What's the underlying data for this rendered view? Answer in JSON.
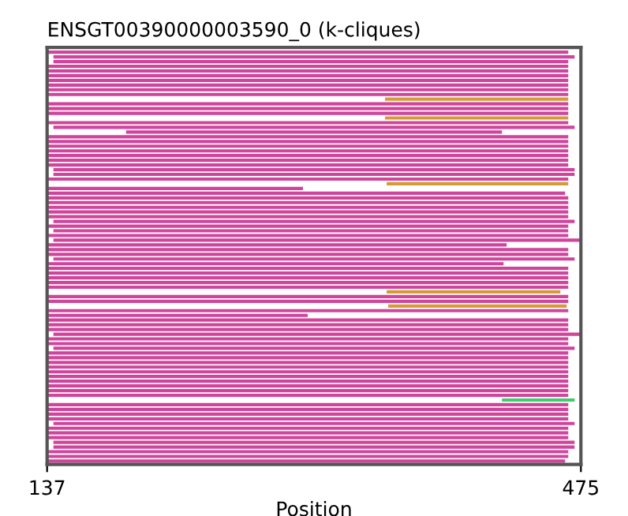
{
  "chart_data": {
    "type": "bar",
    "orientation": "horizontal",
    "title": "ENSGT00390000003590_0 (k-cliques)",
    "xlabel": "Position",
    "categories": [
      null,
      null,
      null,
      null,
      null,
      null,
      null,
      null,
      null,
      null,
      null,
      null,
      null,
      null,
      null,
      null,
      null,
      null,
      null,
      null,
      null,
      null,
      null,
      null,
      null,
      null,
      null,
      null,
      null,
      null,
      null,
      null,
      null,
      null,
      null,
      null,
      null,
      null,
      null,
      null,
      null,
      null,
      null,
      null,
      null,
      null,
      null,
      null,
      null,
      null,
      null,
      null,
      null,
      null,
      null,
      null,
      null,
      null,
      null,
      null,
      null,
      null,
      null,
      null,
      null,
      null,
      null,
      null,
      null,
      null,
      null,
      null,
      null,
      null,
      null,
      null,
      null,
      null,
      null,
      null,
      null,
      null,
      null,
      null,
      null,
      null,
      null,
      null
    ],
    "base": [
      137,
      141,
      141,
      137,
      137,
      137,
      137,
      137,
      137,
      137,
      351,
      137,
      137,
      137,
      351,
      137,
      141,
      187,
      137,
      137,
      137,
      137,
      137,
      137,
      137,
      141,
      141,
      137,
      352,
      137,
      137,
      137,
      137,
      137,
      137,
      137,
      141,
      137,
      141,
      137,
      141,
      137,
      137,
      137,
      141,
      137,
      137,
      137,
      137,
      137,
      137,
      352,
      137,
      137,
      353,
      137,
      137,
      137,
      137,
      137,
      141,
      137,
      137,
      141,
      137,
      137,
      137,
      137,
      137,
      137,
      137,
      137,
      137,
      137,
      425,
      137,
      137,
      137,
      137,
      141,
      137,
      137,
      137,
      141,
      141,
      137,
      137,
      137
    ],
    "values": [
      330,
      330,
      326,
      330,
      330,
      330,
      330,
      330,
      330,
      330,
      116,
      330,
      330,
      330,
      116,
      330,
      330,
      238,
      330,
      330,
      330,
      330,
      330,
      330,
      330,
      330,
      330,
      330,
      115,
      162,
      328,
      330,
      330,
      330,
      330,
      330,
      330,
      330,
      326,
      330,
      334,
      291,
      330,
      330,
      330,
      289,
      330,
      330,
      330,
      330,
      330,
      110,
      330,
      330,
      113,
      330,
      165,
      330,
      330,
      330,
      334,
      330,
      330,
      330,
      330,
      330,
      330,
      330,
      330,
      330,
      330,
      330,
      330,
      330,
      46,
      330,
      330,
      330,
      330,
      330,
      330,
      330,
      330,
      330,
      330,
      330,
      330,
      328
    ],
    "colors": [
      "#d0449b",
      "#d0449b",
      "#d0449b",
      "#d0449b",
      "#d0449b",
      "#d0449b",
      "#d0449b",
      "#d0449b",
      "#d0449b",
      "#d0449b",
      "#d49a3a",
      "#d0449b",
      "#d0449b",
      "#d0449b",
      "#d49a3a",
      "#d0449b",
      "#d0449b",
      "#d0449b",
      "#d0449b",
      "#d0449b",
      "#d0449b",
      "#d0449b",
      "#d0449b",
      "#d0449b",
      "#d0449b",
      "#d0449b",
      "#d0449b",
      "#d0449b",
      "#d49a3a",
      "#d0449b",
      "#d0449b",
      "#d0449b",
      "#d0449b",
      "#d0449b",
      "#d0449b",
      "#d0449b",
      "#d0449b",
      "#d0449b",
      "#d0449b",
      "#d0449b",
      "#d0449b",
      "#d0449b",
      "#d0449b",
      "#d0449b",
      "#d0449b",
      "#d0449b",
      "#d0449b",
      "#d0449b",
      "#d0449b",
      "#d0449b",
      "#d0449b",
      "#d49a3a",
      "#d0449b",
      "#d0449b",
      "#d49a3a",
      "#d0449b",
      "#d0449b",
      "#d0449b",
      "#d0449b",
      "#d0449b",
      "#d0449b",
      "#d0449b",
      "#d0449b",
      "#d0449b",
      "#d0449b",
      "#d0449b",
      "#d0449b",
      "#d0449b",
      "#d0449b",
      "#d0449b",
      "#d0449b",
      "#d0449b",
      "#d0449b",
      "#d0449b",
      "#3dcc6e",
      "#d0449b",
      "#d0449b",
      "#d0449b",
      "#d0449b",
      "#d0449b",
      "#d0449b",
      "#d0449b",
      "#d0449b",
      "#d0449b",
      "#d0449b",
      "#d0449b",
      "#d0449b",
      "#d0449b"
    ],
    "xlim": [
      137,
      475
    ],
    "xticks": [
      137,
      475
    ],
    "tick_labels": "x"
  }
}
